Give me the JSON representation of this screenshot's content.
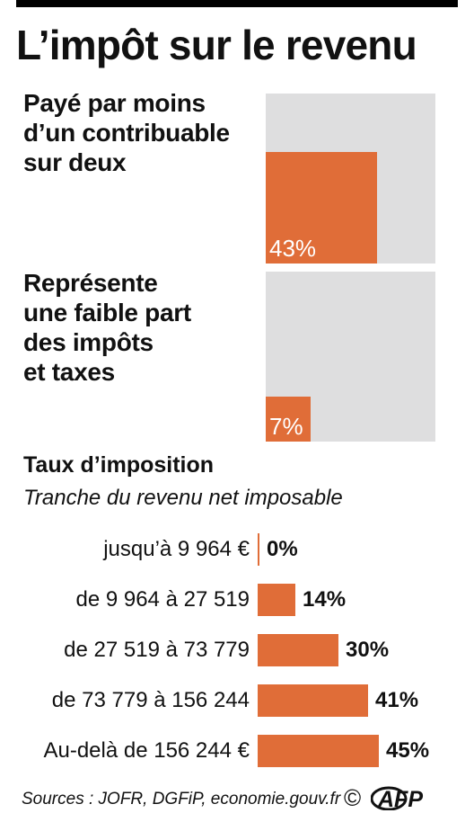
{
  "title": "L’impôt sur le revenu",
  "blocks": [
    {
      "text": "Payé par moins\nd’un contribuable\nsur deux",
      "value": 43,
      "label": "43%"
    },
    {
      "text": "Représente\nune faible part\ndes impôts\net taxes",
      "value": 7,
      "label": "7%"
    }
  ],
  "rates_title": "Taux d’imposition",
  "rates_subtitle": "Tranche du revenu net imposable",
  "chart_data": {
    "type": "bar",
    "orientation": "horizontal",
    "categories": [
      "jusqu’à 9 964 €",
      "de 9 964 à 27 519",
      "de 27 519 à 73 779",
      "de 73 779 à 156 244",
      "Au-delà de 156 244 €"
    ],
    "values": [
      0,
      14,
      30,
      41,
      45
    ],
    "value_labels": [
      "0%",
      "14%",
      "30%",
      "41%",
      "45%"
    ],
    "unit": "%",
    "title": "Taux d’imposition",
    "subtitle": "Tranche du revenu net imposable",
    "grid": false,
    "legend": "none"
  },
  "source": "Sources : JOFR, DGFiP, economie.gouv.fr",
  "copyright_symbol": "©",
  "logo_text": "AFP",
  "colors": {
    "accent": "#e06d38",
    "square_bg": "#dededf",
    "text": "#111111"
  }
}
